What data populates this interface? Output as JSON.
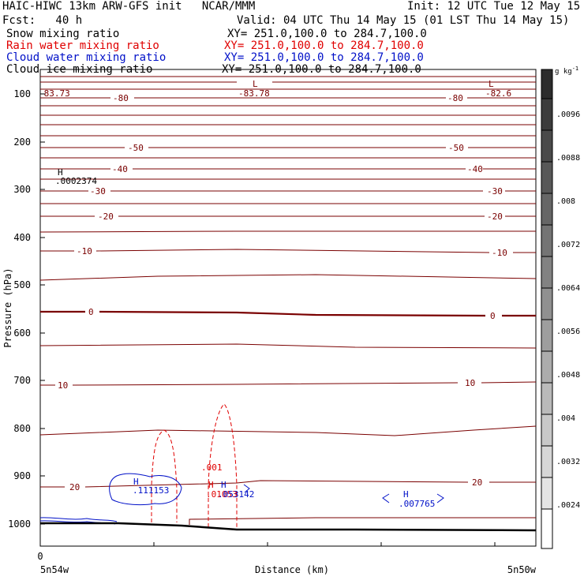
{
  "header": {
    "line1_left": "HAIC-HIWC 13km ARW-GFS init   NCAR/MMM",
    "line1_right": "Init: 12 UTC Tue 12 May 15",
    "line2_left": "Fcst:   40 h",
    "line2_right": "Valid: 04 UTC Thu 14 May 15 (01 LST Thu 14 May 15)",
    "xy_text": "XY= 251.0,100.0 to 284.7,100.0",
    "fields": [
      {
        "label": "Snow mixing ratio",
        "color": "#000000"
      },
      {
        "label": "Rain water mixing ratio",
        "color": "#e00000"
      },
      {
        "label": "Cloud water mixing ratio",
        "color": "#0010c8"
      },
      {
        "label": "Cloud ice mixing ratio",
        "color": "#000000"
      }
    ]
  },
  "chart_data": {
    "type": "line",
    "xlabel": "Distance (km)",
    "ylabel": "Pressure (hPa)",
    "x_origin_label": "0",
    "x_start_label": "5n54w",
    "x_end_label": "5n50w",
    "y_ticks": [
      "100",
      "200",
      "300",
      "400",
      "500",
      "600",
      "700",
      "800",
      "900",
      "1000"
    ],
    "ylim": [
      1050,
      50
    ],
    "temperature_labels": [
      "-80",
      "-50",
      "-40",
      "-30",
      "-20",
      "-10",
      "0",
      "10",
      "20"
    ],
    "extrema": [
      {
        "type": "L",
        "value": "-83.78",
        "color": "#800000"
      },
      {
        "type": "L",
        "value": "-82.6",
        "color": "#800000"
      },
      {
        "type": "",
        "value": "-83.73",
        "color": "#800000"
      },
      {
        "type": "H",
        "value": ".0002374",
        "color": "#000000"
      },
      {
        "type": "H",
        "value": ".111153",
        "color": "#0010c8"
      },
      {
        "type": "H",
        "value": ".053142",
        "color": "#0010c8"
      },
      {
        "type": "H",
        "value": ".01053",
        "color": "#e00000"
      },
      {
        "type": "",
        "value": ".001",
        "color": "#e00000"
      },
      {
        "type": "H",
        "value": ".007765",
        "color": "#0010c8"
      }
    ],
    "colorbar": {
      "unit": "g kg",
      "unit_sup": "-1",
      "ticks": [
        ".0096",
        ".0088",
        ".008",
        ".0072",
        ".0064",
        ".0056",
        ".0048",
        ".004",
        ".0032",
        ".0024"
      ]
    }
  }
}
